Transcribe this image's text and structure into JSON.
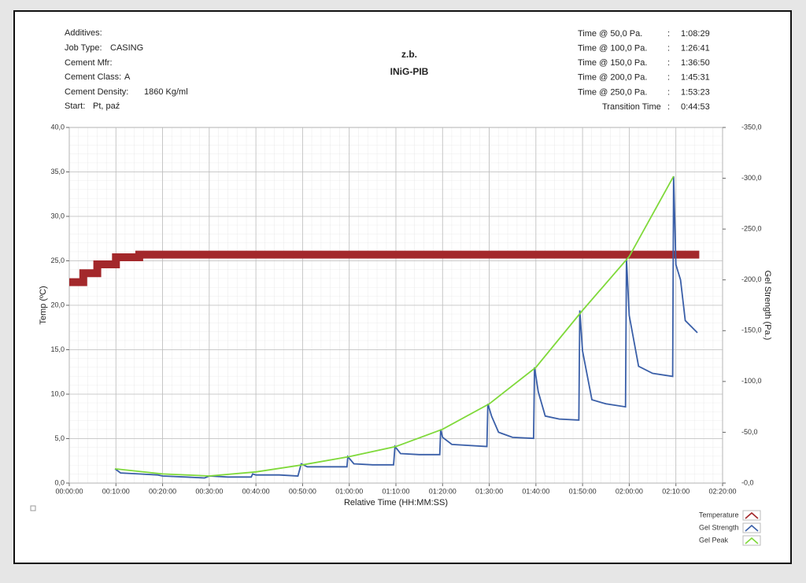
{
  "header": {
    "left": [
      {
        "label": "Additives:"
      },
      {
        "label": "Job Type:",
        "value": "CASING"
      },
      {
        "label": "Cement Mfr:"
      },
      {
        "label": "Cement Class:",
        "value": "A"
      },
      {
        "label": "Cement Density:",
        "value": "1860 Kg/ml"
      },
      {
        "label": "Start:",
        "value": "Pt, paź"
      }
    ],
    "center": [
      "z.b.",
      "INiG-PIB"
    ],
    "separator": ":",
    "right": [
      {
        "label": "Time @ 50,0 Pa.",
        "value": "1:08:29"
      },
      {
        "label": "Time @ 100,0 Pa.",
        "value": "1:26:41"
      },
      {
        "label": "Time @ 150,0 Pa.",
        "value": "1:36:50"
      },
      {
        "label": "Time @ 200,0 Pa.",
        "value": "1:45:31"
      },
      {
        "label": "Time @ 250,0 Pa.",
        "value": "1:53:23"
      },
      {
        "label": "Transition Time",
        "value": "0:44:53"
      }
    ]
  },
  "chart_data": {
    "type": "line",
    "xlabel": "Relative Time (HH:MM:SS)",
    "ylabel": "Temp (ºC)",
    "y2label": "Gel Strength (Pa.)",
    "xlim": [
      0,
      140
    ],
    "xticks": [
      {
        "value": 0,
        "label": "00:00:00"
      },
      {
        "value": 10,
        "label": "00:10:00"
      },
      {
        "value": 20,
        "label": "00:20:00"
      },
      {
        "value": 30,
        "label": "00:30:00"
      },
      {
        "value": 40,
        "label": "00:40:00"
      },
      {
        "value": 50,
        "label": "00:50:00"
      },
      {
        "value": 60,
        "label": "01:00:00"
      },
      {
        "value": 70,
        "label": "01:10:00"
      },
      {
        "value": 80,
        "label": "01:20:00"
      },
      {
        "value": 90,
        "label": "01:30:00"
      },
      {
        "value": 100,
        "label": "01:40:00"
      },
      {
        "value": 110,
        "label": "01:50:00"
      },
      {
        "value": 120,
        "label": "02:00:00"
      },
      {
        "value": 130,
        "label": "02:10:00"
      },
      {
        "value": 140,
        "label": "02:20:00"
      }
    ],
    "ylim": [
      0,
      40
    ],
    "yticks": [
      {
        "value": 0,
        "label": "0,0"
      },
      {
        "value": 5,
        "label": "5,0"
      },
      {
        "value": 10,
        "label": "10,0"
      },
      {
        "value": 15,
        "label": "15,0"
      },
      {
        "value": 20,
        "label": "20,0"
      },
      {
        "value": 25,
        "label": "25,0"
      },
      {
        "value": 30,
        "label": "30,0"
      },
      {
        "value": 35,
        "label": "35,0"
      },
      {
        "value": 40,
        "label": "40,0"
      }
    ],
    "y2lim": [
      0,
      -350
    ],
    "y2ticks": [
      {
        "value": 0,
        "label": "-0,0"
      },
      {
        "value": -50,
        "label": "-50,0"
      },
      {
        "value": -100,
        "label": "-100,0"
      },
      {
        "value": -150,
        "label": "-150,0"
      },
      {
        "value": -200,
        "label": "-200,0"
      },
      {
        "value": -250,
        "label": "-250,0"
      },
      {
        "value": -300,
        "label": "-300,0"
      },
      {
        "value": -350,
        "label": "-350,0"
      }
    ],
    "grid": true,
    "series": [
      {
        "name": "Temperature",
        "color": "#a3282b",
        "x": [
          0,
          3,
          3,
          6,
          6,
          10,
          10,
          15,
          15,
          135
        ],
        "values": [
          22.6,
          22.6,
          23.6,
          23.6,
          24.6,
          24.6,
          25.4,
          25.4,
          25.7,
          25.7
        ]
      },
      {
        "name": "Gel Strength",
        "color": "#3a5fa8",
        "axis": "y2",
        "x": [
          9.8,
          11,
          15,
          19,
          20,
          25,
          29,
          30,
          34,
          39,
          39.3,
          40,
          45,
          49,
          49.7,
          51,
          55,
          59.5,
          59.7,
          61,
          65,
          69.5,
          69.8,
          71,
          75,
          79.4,
          79.6,
          80,
          82,
          89.5,
          89.7,
          90.5,
          92,
          95,
          99.5,
          99.7,
          100.5,
          102,
          105,
          109.2,
          109.4,
          110,
          112,
          115,
          119.2,
          119.4,
          120,
          122,
          125,
          129.3,
          129.5,
          130,
          131,
          132,
          134.6
        ],
        "values": [
          -14,
          -10,
          -9,
          -8,
          -7,
          -6,
          -5,
          -7,
          -6,
          -6,
          -9,
          -8,
          -8,
          -7,
          -19,
          -16,
          -16,
          -16,
          -26,
          -19,
          -18,
          -18,
          -36,
          -29,
          -28,
          -28,
          -53,
          -45,
          -38,
          -36,
          -78,
          -66,
          -50,
          -45,
          -44,
          -114,
          -90,
          -66,
          -63,
          -62,
          -170,
          -130,
          -82,
          -78,
          -75,
          -221,
          -165,
          -115,
          -108,
          -105,
          -302,
          -215,
          -200,
          -160,
          -148
        ]
      },
      {
        "name": "Gel Peak",
        "color": "#7fd93a",
        "axis": "y2",
        "x": [
          9.8,
          20,
          30,
          40,
          50,
          60,
          70,
          80,
          90,
          100,
          110,
          120,
          129.5
        ],
        "values": [
          -14,
          -9,
          -7,
          -11,
          -18,
          -26,
          -36,
          -53,
          -78,
          -114,
          -170,
          -223,
          -302
        ]
      }
    ]
  }
}
